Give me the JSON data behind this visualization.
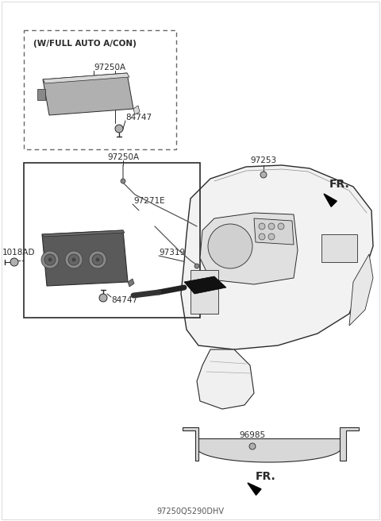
{
  "bg_color": "#ffffff",
  "lc": "#2a2a2a",
  "gray_part": "#b0b0b0",
  "gray_light": "#d8d8d8",
  "gray_dark": "#888888",
  "title": "97250Q5290DHV",
  "labels": {
    "w_full_auto": "(W/FULL AUTO A/CON)",
    "97250A_top": "97250A",
    "84747_top": "84747",
    "97250A_main": "97250A",
    "97271E": "97271E",
    "97319": "97319",
    "84747_main": "84747",
    "1018AD": "1018AD",
    "97253": "97253",
    "FR_top": "FR.",
    "96985": "96985",
    "FR_bot": "FR."
  },
  "figsize": [
    4.8,
    6.56
  ],
  "dpi": 100
}
